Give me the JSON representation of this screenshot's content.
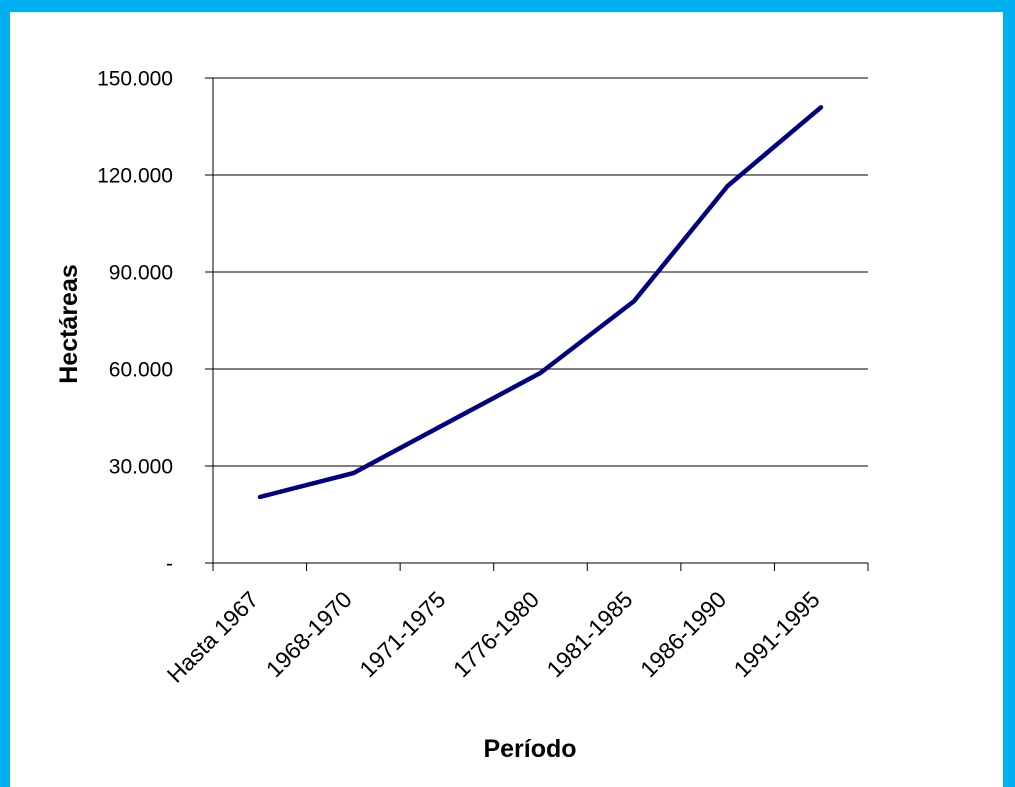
{
  "page": {
    "border_color": "#00B0F0",
    "background": "#FFFFFF"
  },
  "chart_data": {
    "type": "line",
    "categories": [
      "Hasta 1967",
      "1968-1970",
      "1971-1975",
      "1776-1980",
      "1981-1985",
      "1986-1990",
      "1991-1995"
    ],
    "series": [
      {
        "values": [
          20400,
          27800,
          43300,
          58800,
          81000,
          116600,
          141000
        ],
        "color": "#000080"
      }
    ],
    "xlabel": "Período",
    "ylabel": "Hectáreas",
    "ylim": [
      0,
      150000
    ],
    "y_ticks": [
      0,
      30000,
      60000,
      90000,
      120000,
      150000
    ],
    "y_tick_labels": [
      "-",
      "30.000",
      "60.000",
      "90.000",
      "120.000",
      "150.000"
    ],
    "grid": true,
    "gridline_color": "#000000",
    "legend": "none"
  }
}
